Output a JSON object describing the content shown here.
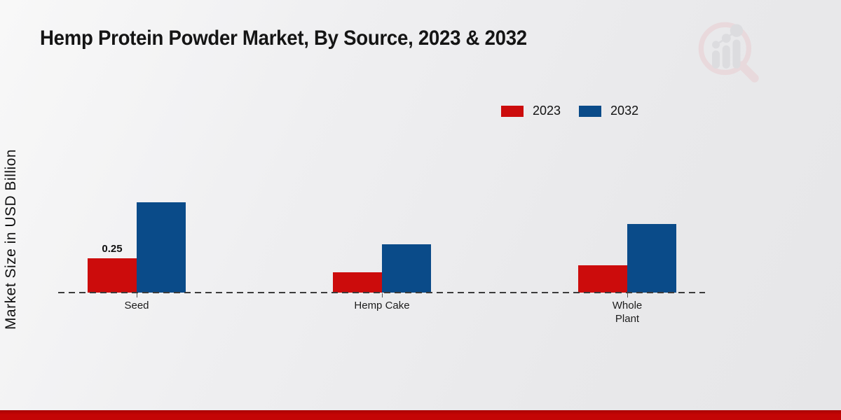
{
  "title": "Hemp Protein Powder Market, By Source, 2023 & 2032",
  "y_axis_label": "Market Size in USD Billion",
  "legend": [
    {
      "label": "2023",
      "color": "#cc0c0c"
    },
    {
      "label": "2032",
      "color": "#0a4b89"
    }
  ],
  "watermark": "market-research-future-logo",
  "footer": {
    "bar_color": "#c40505"
  },
  "chart_data": {
    "type": "bar",
    "title": "Hemp Protein Powder Market, By Source, 2023 & 2032",
    "categories": [
      "Seed",
      "Hemp Cake",
      "Whole Plant"
    ],
    "category_labels": [
      "Seed",
      "Hemp Cake",
      "Whole\nPlant"
    ],
    "series": [
      {
        "name": "2023",
        "color": "#cc0c0c",
        "values": [
          0.25,
          0.15,
          0.2
        ]
      },
      {
        "name": "2032",
        "color": "#0a4b89",
        "values": [
          0.66,
          0.35,
          0.5
        ]
      }
    ],
    "data_labels": [
      {
        "category": "Seed",
        "series": "2023",
        "text": "0.25"
      }
    ],
    "xlabel": "",
    "ylabel": "Market Size in USD Billion",
    "ylim": [
      0,
      0.75
    ],
    "grid": false,
    "legend_position": "top-right",
    "baseline_style": "dashed",
    "y_axis_ticks_visible": false
  }
}
